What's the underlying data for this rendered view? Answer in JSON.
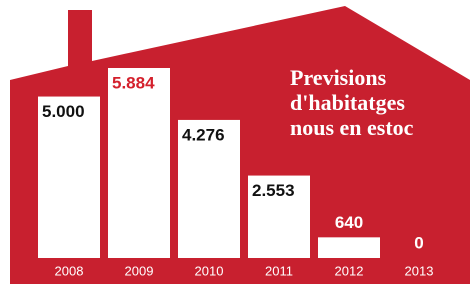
{
  "chart_data": {
    "type": "bar",
    "title_lines": [
      "Previsions",
      "d'habitatges",
      "nous en estoc"
    ],
    "categories": [
      "2008",
      "2009",
      "2010",
      "2011",
      "2012",
      "2013"
    ],
    "values": [
      5000,
      5884,
      4276,
      2553,
      640,
      0
    ],
    "value_labels": [
      "5.000",
      "5.884",
      "4.276",
      "2.553",
      "640",
      "0"
    ],
    "label_colors": [
      "#111111",
      "#d4202c",
      "#111111",
      "#111111",
      "#ffffff",
      "#ffffff"
    ],
    "color": "#ffffff",
    "background_color": "#c8202f"
  }
}
